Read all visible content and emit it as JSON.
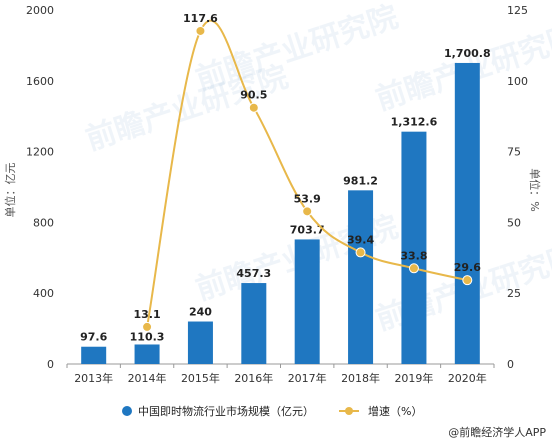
{
  "chart_data": {
    "type": "bar+line",
    "categories": [
      "2013年",
      "2014年",
      "2015年",
      "2016年",
      "2017年",
      "2018年",
      "2019年",
      "2020年"
    ],
    "series": [
      {
        "name": "中国即时物流行业市场规模（亿元）",
        "type": "bar",
        "axis": "left",
        "color": "#1f77c1",
        "values": [
          97.6,
          110.3,
          240,
          457.3,
          703.7,
          981.2,
          1312.6,
          1700.8
        ],
        "labels": [
          "97.6",
          "110.3",
          "240",
          "457.3",
          "703.7",
          "981.2",
          "1,312.6",
          "1,700.8"
        ]
      },
      {
        "name": "增速（%）",
        "type": "line",
        "axis": "right",
        "color": "#e8b84a",
        "values": [
          null,
          13.1,
          117.6,
          90.5,
          53.9,
          39.4,
          33.8,
          29.6
        ],
        "labels": [
          "",
          "13.1",
          "117.6",
          "90.5",
          "53.9",
          "39.4",
          "33.8",
          "29.6"
        ]
      }
    ],
    "yleft": {
      "label": "单位：亿元",
      "ylim": [
        0,
        2000
      ],
      "ticks": [
        "0",
        "400",
        "800",
        "1200",
        "1600",
        "2000"
      ]
    },
    "yright": {
      "label": "单位：%",
      "ylim": [
        0,
        125
      ],
      "ticks": [
        "0",
        "25",
        "50",
        "75",
        "100",
        "125"
      ]
    },
    "grid": false,
    "legend_position": "bottom"
  },
  "source_text": "@前瞻经济学人APP",
  "watermark_text": "前瞻产业研究院"
}
